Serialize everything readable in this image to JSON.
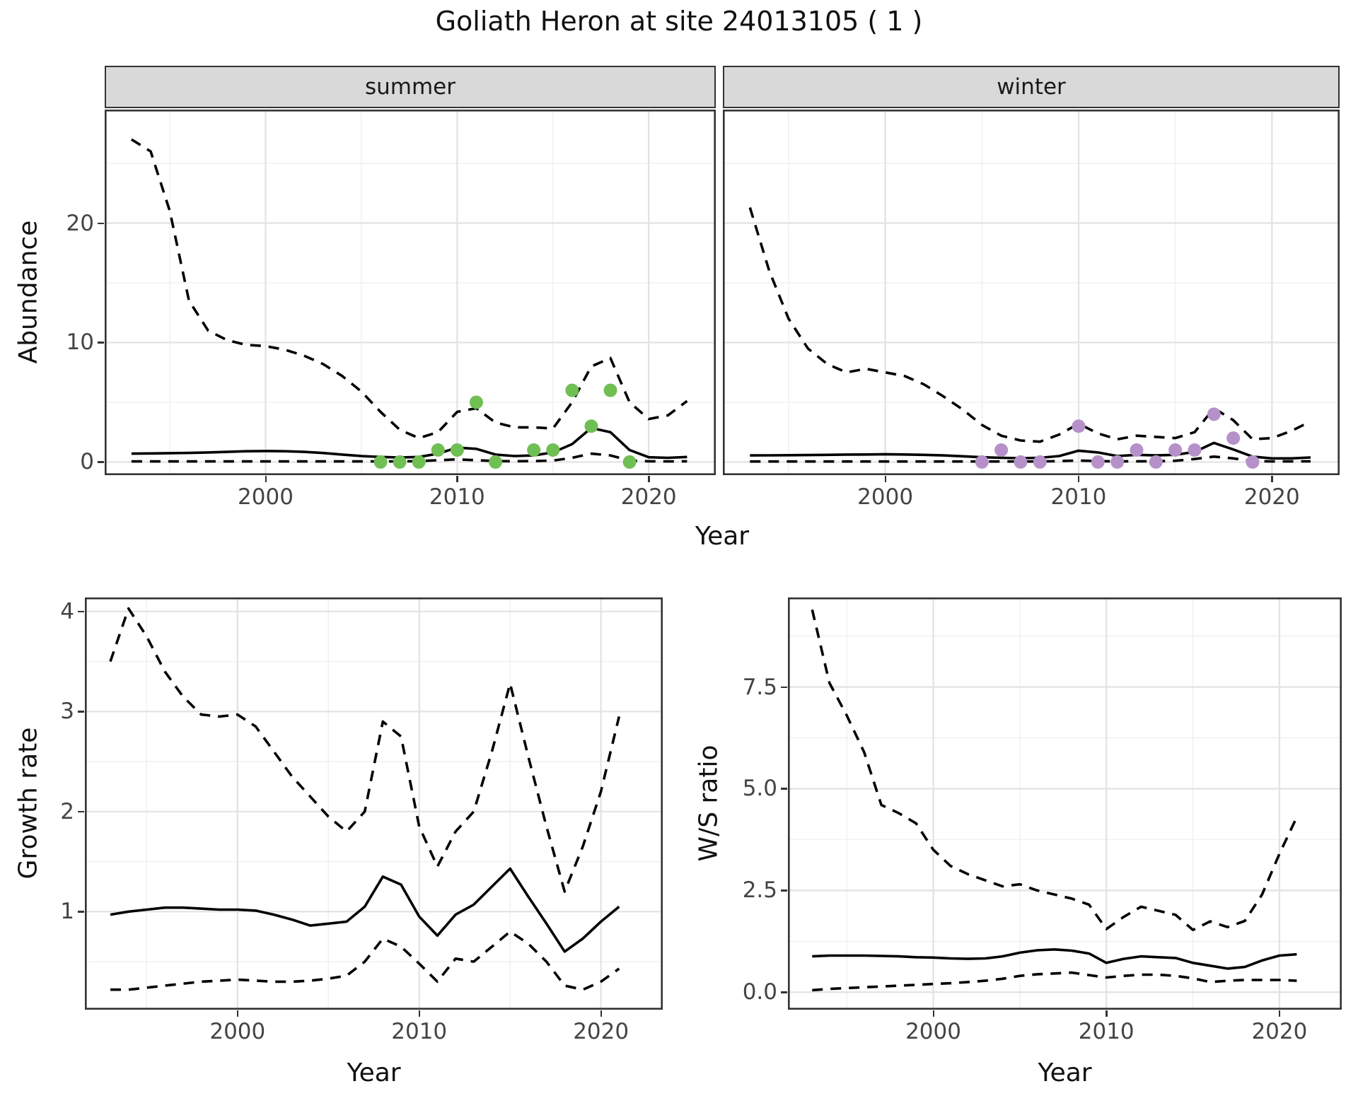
{
  "title": "Goliath Heron at site 24013105 ( 1 )",
  "colors": {
    "summer_point": "#70BF54",
    "winter_point": "#B691C9",
    "line": "#000000",
    "strip_bg": "#d9d9d9",
    "panel_border": "#333333",
    "grid_major": "#e2e2e2",
    "grid_minor": "#f0f0f0",
    "axis_text": "#444444"
  },
  "chart_data": {
    "abundance": {
      "type": "line",
      "xlabel": "Year",
      "ylabel": "Abundance",
      "x": [
        1993,
        1994,
        1995,
        1996,
        1997,
        1998,
        1999,
        2000,
        2001,
        2002,
        2003,
        2004,
        2005,
        2006,
        2007,
        2008,
        2009,
        2010,
        2011,
        2012,
        2013,
        2014,
        2015,
        2016,
        2017,
        2018,
        2019,
        2020,
        2021,
        2022
      ],
      "xlim": [
        1991.6,
        2023.5
      ],
      "ylim": [
        -1.1,
        29.5
      ],
      "x_ticks": [
        2000,
        2010,
        2020
      ],
      "x_tick_labels": [
        "2000",
        "2010",
        "2020"
      ],
      "x_minor": [
        1995,
        2005,
        2015
      ],
      "y_ticks": [
        0,
        10,
        20
      ],
      "y_tick_labels": [
        "0",
        "10",
        "20"
      ],
      "y_minor": [
        5,
        15,
        25
      ],
      "facets": [
        {
          "label": "summer",
          "point_color": "#70BF54",
          "series": [
            {
              "name": "upper95",
              "style": "dashed",
              "values": [
                27.0,
                26.0,
                21.0,
                13.5,
                11.0,
                10.2,
                9.8,
                9.7,
                9.4,
                8.9,
                8.2,
                7.2,
                5.9,
                4.2,
                2.7,
                2.0,
                2.5,
                4.2,
                4.5,
                3.3,
                2.9,
                2.9,
                2.8,
                5.0,
                8.0,
                8.7,
                5.0,
                3.6,
                3.9,
                5.1
              ]
            },
            {
              "name": "median",
              "style": "solid",
              "values": [
                0.7,
                0.72,
                0.74,
                0.76,
                0.8,
                0.85,
                0.9,
                0.92,
                0.9,
                0.85,
                0.75,
                0.62,
                0.5,
                0.42,
                0.38,
                0.42,
                0.7,
                1.2,
                1.1,
                0.62,
                0.5,
                0.55,
                0.8,
                1.5,
                2.85,
                2.5,
                1.0,
                0.4,
                0.35,
                0.42
              ]
            },
            {
              "name": "lower95",
              "style": "dashed",
              "values": [
                0.05,
                0.05,
                0.05,
                0.05,
                0.05,
                0.05,
                0.05,
                0.05,
                0.05,
                0.05,
                0.05,
                0.05,
                0.05,
                0.05,
                0.05,
                0.08,
                0.15,
                0.22,
                0.15,
                0.08,
                0.06,
                0.08,
                0.12,
                0.35,
                0.7,
                0.55,
                0.12,
                0.06,
                0.05,
                0.06
              ]
            }
          ],
          "observations": [
            [
              2006,
              0
            ],
            [
              2007,
              0
            ],
            [
              2008,
              0
            ],
            [
              2009,
              1
            ],
            [
              2010,
              1
            ],
            [
              2011,
              5
            ],
            [
              2012,
              0
            ],
            [
              2014,
              1
            ],
            [
              2015,
              1
            ],
            [
              2016,
              6
            ],
            [
              2017,
              3
            ],
            [
              2018,
              6
            ],
            [
              2019,
              0
            ]
          ]
        },
        {
          "label": "winter",
          "point_color": "#B691C9",
          "series": [
            {
              "name": "upper95",
              "style": "dashed",
              "values": [
                21.3,
                16.0,
                12.0,
                9.5,
                8.2,
                7.5,
                7.8,
                7.5,
                7.2,
                6.5,
                5.5,
                4.4,
                3.1,
                2.2,
                1.8,
                1.7,
                2.3,
                3.2,
                2.4,
                1.9,
                2.2,
                2.1,
                2.0,
                2.5,
                4.5,
                3.5,
                1.9,
                2.0,
                2.6,
                3.4
              ]
            },
            {
              "name": "median",
              "style": "solid",
              "values": [
                0.55,
                0.56,
                0.57,
                0.58,
                0.6,
                0.62,
                0.63,
                0.65,
                0.63,
                0.6,
                0.55,
                0.48,
                0.4,
                0.35,
                0.32,
                0.35,
                0.5,
                0.95,
                0.8,
                0.5,
                0.6,
                0.55,
                0.6,
                0.85,
                1.6,
                1.05,
                0.45,
                0.3,
                0.3,
                0.38
              ]
            },
            {
              "name": "lower95",
              "style": "dashed",
              "values": [
                0.04,
                0.04,
                0.04,
                0.04,
                0.04,
                0.04,
                0.04,
                0.04,
                0.04,
                0.04,
                0.04,
                0.04,
                0.04,
                0.04,
                0.04,
                0.04,
                0.08,
                0.12,
                0.08,
                0.05,
                0.06,
                0.06,
                0.1,
                0.25,
                0.45,
                0.3,
                0.08,
                0.05,
                0.05,
                0.06
              ]
            }
          ],
          "observations": [
            [
              2005,
              0
            ],
            [
              2006,
              1
            ],
            [
              2007,
              0
            ],
            [
              2008,
              0
            ],
            [
              2010,
              3
            ],
            [
              2011,
              0
            ],
            [
              2012,
              0
            ],
            [
              2013,
              1
            ],
            [
              2014,
              0
            ],
            [
              2015,
              1
            ],
            [
              2016,
              1
            ],
            [
              2017,
              4
            ],
            [
              2018,
              2
            ],
            [
              2019,
              0
            ]
          ]
        }
      ]
    },
    "growth_rate": {
      "type": "line",
      "xlabel": "Year",
      "ylabel": "Growth rate",
      "x": [
        1993,
        1994,
        1995,
        1996,
        1997,
        1998,
        1999,
        2000,
        2001,
        2002,
        2003,
        2004,
        2005,
        2006,
        2007,
        2008,
        2009,
        2010,
        2011,
        2012,
        2013,
        2014,
        2015,
        2016,
        2017,
        2018,
        2019,
        2020,
        2021
      ],
      "xlim": [
        1991.6,
        2023.4
      ],
      "ylim": [
        0.02,
        4.14
      ],
      "x_ticks": [
        2000,
        2010,
        2020
      ],
      "x_tick_labels": [
        "2000",
        "2010",
        "2020"
      ],
      "x_minor": [
        1995,
        2005,
        2015
      ],
      "y_ticks": [
        1,
        2,
        3,
        4
      ],
      "y_tick_labels": [
        "1",
        "2",
        "3",
        "4"
      ],
      "y_minor": [
        0.5,
        1.5,
        2.5,
        3.5
      ],
      "series": [
        {
          "name": "upper95",
          "style": "dashed",
          "values": [
            3.5,
            4.03,
            3.75,
            3.4,
            3.15,
            2.97,
            2.95,
            2.97,
            2.85,
            2.6,
            2.35,
            2.15,
            1.95,
            1.8,
            2.0,
            2.9,
            2.75,
            1.85,
            1.45,
            1.8,
            2.0,
            2.6,
            3.28,
            2.55,
            1.85,
            1.2,
            1.65,
            2.2,
            2.95
          ]
        },
        {
          "name": "median",
          "style": "solid",
          "values": [
            0.97,
            1.0,
            1.02,
            1.04,
            1.04,
            1.03,
            1.02,
            1.02,
            1.01,
            0.97,
            0.92,
            0.86,
            0.88,
            0.9,
            1.05,
            1.35,
            1.27,
            0.95,
            0.76,
            0.97,
            1.07,
            1.25,
            1.43,
            1.15,
            0.88,
            0.6,
            0.73,
            0.9,
            1.05
          ]
        },
        {
          "name": "lower95",
          "style": "dashed",
          "values": [
            0.22,
            0.22,
            0.24,
            0.26,
            0.28,
            0.3,
            0.31,
            0.32,
            0.31,
            0.3,
            0.3,
            0.31,
            0.33,
            0.36,
            0.5,
            0.73,
            0.65,
            0.48,
            0.3,
            0.53,
            0.5,
            0.65,
            0.8,
            0.68,
            0.5,
            0.26,
            0.22,
            0.3,
            0.43
          ]
        }
      ]
    },
    "ws_ratio": {
      "type": "line",
      "xlabel": "Year",
      "ylabel": "W/S ratio",
      "x": [
        1993,
        1994,
        1995,
        1996,
        1997,
        1998,
        1999,
        2000,
        2001,
        2002,
        2003,
        2004,
        2005,
        2006,
        2007,
        2008,
        2009,
        2010,
        2011,
        2012,
        2013,
        2014,
        2015,
        2016,
        2017,
        2018,
        2019,
        2020,
        2021
      ],
      "xlim": [
        1991.6,
        2023.6
      ],
      "ylim": [
        -0.43,
        9.7
      ],
      "x_ticks": [
        2000,
        2010,
        2020
      ],
      "x_tick_labels": [
        "2000",
        "2010",
        "2020"
      ],
      "x_minor": [
        1995,
        2005,
        2015
      ],
      "y_ticks": [
        0,
        2.5,
        5,
        7.5
      ],
      "y_tick_labels": [
        "0.0",
        "2.5",
        "5.0",
        "7.5"
      ],
      "y_minor": [
        1.25,
        3.75,
        6.25,
        8.75
      ],
      "series": [
        {
          "name": "upper95",
          "style": "dashed",
          "values": [
            9.4,
            7.6,
            6.8,
            5.9,
            4.6,
            4.4,
            4.15,
            3.5,
            3.1,
            2.9,
            2.75,
            2.6,
            2.65,
            2.5,
            2.4,
            2.3,
            2.15,
            1.55,
            1.85,
            2.1,
            2.0,
            1.9,
            1.53,
            1.74,
            1.6,
            1.75,
            2.4,
            3.4,
            4.3
          ]
        },
        {
          "name": "median",
          "style": "solid",
          "values": [
            0.88,
            0.9,
            0.9,
            0.9,
            0.89,
            0.88,
            0.86,
            0.85,
            0.83,
            0.82,
            0.83,
            0.88,
            0.97,
            1.03,
            1.05,
            1.02,
            0.95,
            0.72,
            0.82,
            0.88,
            0.86,
            0.84,
            0.72,
            0.65,
            0.58,
            0.62,
            0.78,
            0.9,
            0.93
          ]
        },
        {
          "name": "lower95",
          "style": "dashed",
          "values": [
            0.05,
            0.08,
            0.1,
            0.12,
            0.14,
            0.16,
            0.18,
            0.2,
            0.22,
            0.25,
            0.28,
            0.33,
            0.4,
            0.44,
            0.46,
            0.48,
            0.42,
            0.36,
            0.4,
            0.43,
            0.43,
            0.4,
            0.34,
            0.25,
            0.28,
            0.3,
            0.3,
            0.3,
            0.28
          ]
        }
      ]
    }
  }
}
